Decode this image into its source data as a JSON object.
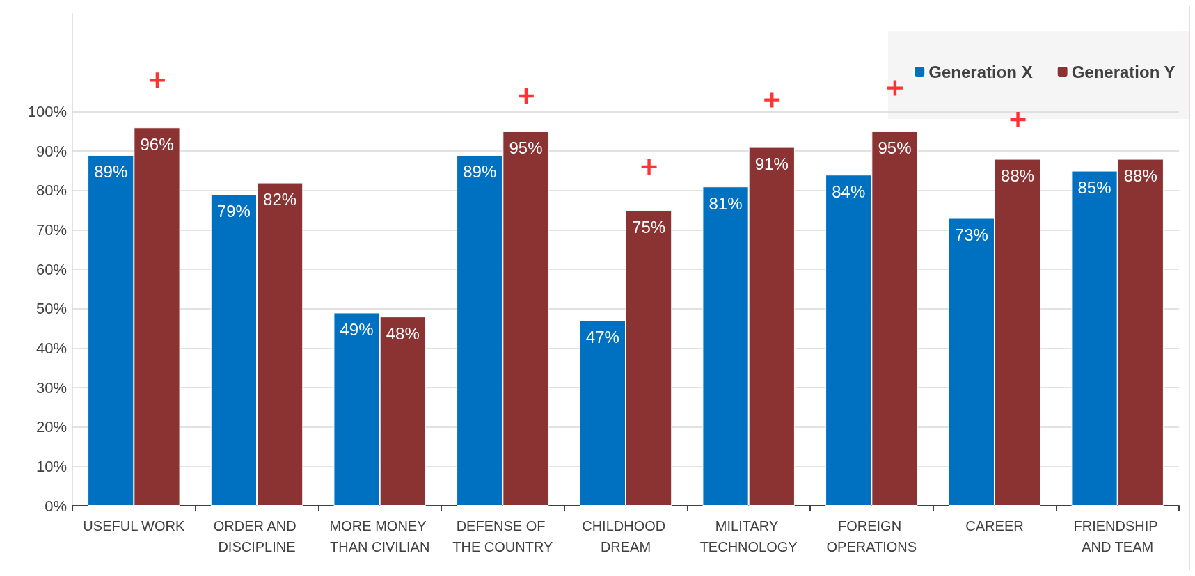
{
  "chart_data": {
    "type": "bar",
    "categories": [
      "USEFUL WORK",
      "ORDER AND DISCIPLINE",
      "MORE MONEY THAN CIVILIAN",
      "DEFENSE OF THE COUNTRY",
      "CHILDHOOD DREAM",
      "MILITARY TECHNOLOGY",
      "FOREIGN OPERATIONS",
      "CAREER",
      "FRIENDSHIP AND TEAM"
    ],
    "series": [
      {
        "name": "Generation X",
        "color": "#0070c0",
        "values": [
          89,
          79,
          49,
          89,
          47,
          81,
          84,
          73,
          85
        ],
        "value_labels": [
          "89%",
          "79%",
          "49%",
          "89%",
          "47%",
          "81%",
          "84%",
          "73%",
          "85%"
        ]
      },
      {
        "name": "Generation Y",
        "color": "#8b3232",
        "values": [
          96,
          82,
          48,
          95,
          75,
          91,
          95,
          88,
          88
        ],
        "value_labels": [
          "96%",
          "82%",
          "48%",
          "95%",
          "75%",
          "91%",
          "95%",
          "88%",
          "88%"
        ]
      },
      {
        "type": "scatter",
        "color": "#ff0000",
        "marker": "cross",
        "x": [
          "USEFUL WORK",
          "DEFENSE OF THE COUNTRY",
          "CHILDHOOD DREAM",
          "MILITARY TECHNOLOGY",
          "FOREIGN OPERATIONS",
          "CAREER"
        ],
        "values": [
          108,
          104,
          86,
          103,
          106,
          98
        ]
      }
    ],
    "ylim": [
      0,
      125
    ],
    "yticks": [
      {
        "value": 0,
        "label": "0%"
      },
      {
        "value": 10,
        "label": "10%"
      },
      {
        "value": 20,
        "label": "20%"
      },
      {
        "value": 30,
        "label": "30%"
      },
      {
        "value": 40,
        "label": "40%"
      },
      {
        "value": 50,
        "label": "50%"
      },
      {
        "value": 60,
        "label": "60%"
      },
      {
        "value": 70,
        "label": "70%"
      },
      {
        "value": 80,
        "label": "80%"
      },
      {
        "value": 90,
        "label": "90%"
      },
      {
        "value": 100,
        "label": "100%"
      }
    ],
    "grid": "y",
    "legend": "top right"
  }
}
